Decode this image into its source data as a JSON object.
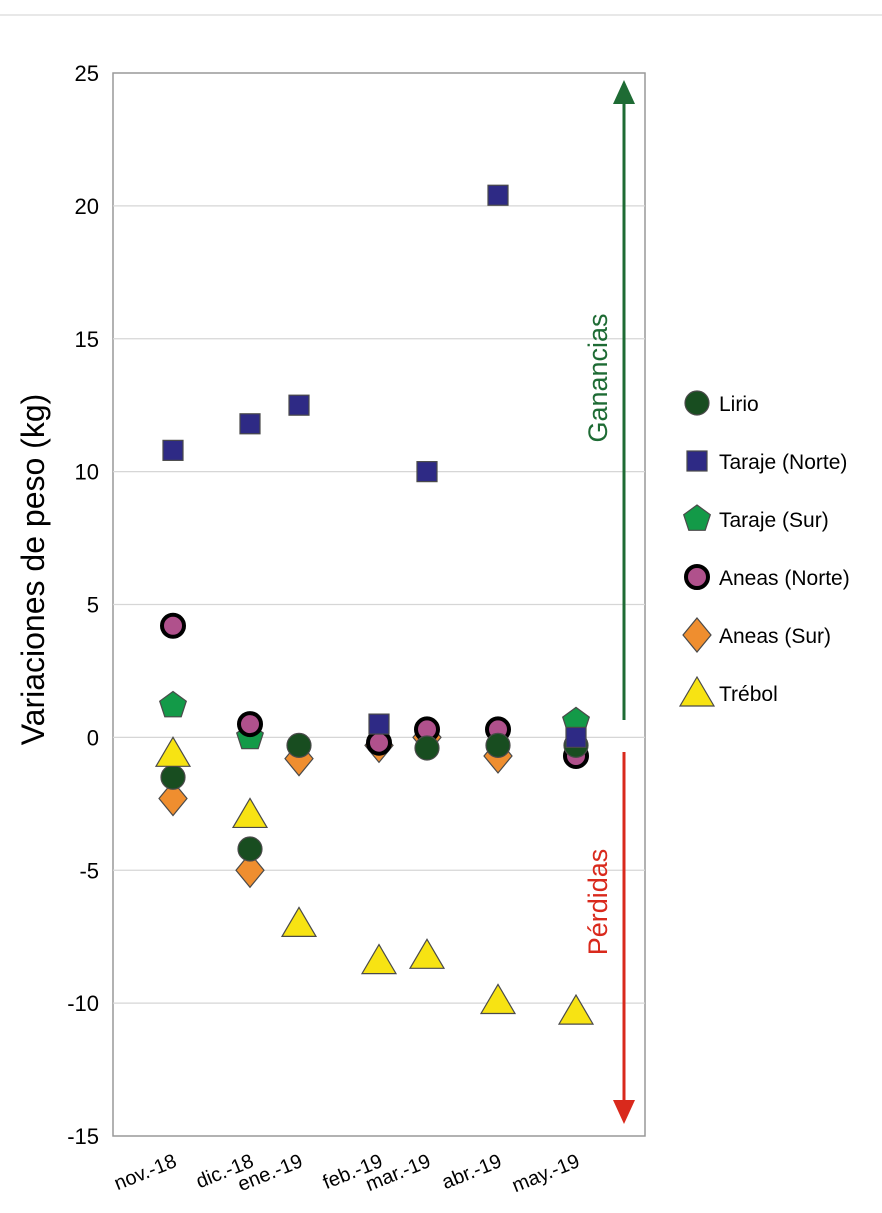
{
  "chart_data": {
    "type": "scatter",
    "categories": [
      "nov.-18",
      "dic.-18",
      "ene.-19",
      "feb.-19",
      "mar.-19",
      "abr.-19",
      "may.-19"
    ],
    "ylabel": "Variaciones de peso (kg)",
    "ylim": [
      -15,
      25
    ],
    "yticks": [
      25,
      20,
      15,
      10,
      5,
      0,
      -5,
      -10,
      -15
    ],
    "grid": "horizontal",
    "legend_position": "right",
    "annotations": {
      "gain": {
        "text": "Ganancias",
        "color": "#1e6b34"
      },
      "loss": {
        "text": "Pérdidas",
        "color": "#d9291c"
      }
    },
    "series": [
      {
        "name": "Aneas (Sur)",
        "marker": "diamond",
        "color": "#ef8e2f",
        "points": [
          {
            "x": "nov.-18",
            "y": -2.3
          },
          {
            "x": "dic.-18",
            "y": -5.0
          },
          {
            "x": "ene.-19",
            "y": -0.8
          },
          {
            "x": "feb.-19",
            "y": -0.3
          },
          {
            "x": "mar.-19",
            "y": 0.0
          },
          {
            "x": "abr.-19",
            "y": -0.7
          }
        ]
      },
      {
        "name": "Taraje (Sur)",
        "marker": "pentagon",
        "color": "#139a48",
        "points": [
          {
            "x": "nov.-18",
            "y": 1.2
          },
          {
            "x": "dic.-18",
            "y": 0.0
          },
          {
            "x": "may.-19",
            "y": 0.6
          }
        ]
      },
      {
        "name": "Aneas (Norte)",
        "marker": "ring",
        "color": "#b0518c",
        "points": [
          {
            "x": "nov.-18",
            "y": 4.2
          },
          {
            "x": "dic.-18",
            "y": 0.5
          },
          {
            "x": "feb.-19",
            "y": -0.2
          },
          {
            "x": "mar.-19",
            "y": 0.3
          },
          {
            "x": "abr.-19",
            "y": 0.3
          },
          {
            "x": "may.-19",
            "y": -0.7
          }
        ]
      },
      {
        "name": "Lirio",
        "marker": "circle",
        "color": "#184d20",
        "points": [
          {
            "x": "nov.-18",
            "y": -1.5
          },
          {
            "x": "dic.-18",
            "y": -4.2
          },
          {
            "x": "ene.-19",
            "y": -0.3
          },
          {
            "x": "mar.-19",
            "y": -0.4
          },
          {
            "x": "abr.-19",
            "y": -0.3
          },
          {
            "x": "may.-19",
            "y": -0.3
          }
        ]
      },
      {
        "name": "Taraje (Norte)",
        "marker": "square",
        "color": "#2e2a85",
        "points": [
          {
            "x": "nov.-18",
            "y": 10.8
          },
          {
            "x": "dic.-18",
            "y": 11.8
          },
          {
            "x": "ene.-19",
            "y": 12.5
          },
          {
            "x": "feb.-19",
            "y": 0.5
          },
          {
            "x": "mar.-19",
            "y": 10.0
          },
          {
            "x": "abr.-19",
            "y": 20.4
          },
          {
            "x": "may.-19",
            "y": 0.0
          }
        ]
      },
      {
        "name": "Trébol",
        "marker": "triangle",
        "color": "#f7e313",
        "points": [
          {
            "x": "nov.-18",
            "y": -0.6
          },
          {
            "x": "dic.-18",
            "y": -2.9
          },
          {
            "x": "ene.-19",
            "y": -7.0
          },
          {
            "x": "feb.-19",
            "y": -8.4
          },
          {
            "x": "mar.-19",
            "y": -8.2
          },
          {
            "x": "abr.-19",
            "y": -9.9
          },
          {
            "x": "may.-19",
            "y": -10.3
          }
        ]
      }
    ],
    "legend_order": [
      "Lirio",
      "Taraje (Norte)",
      "Taraje (Sur)",
      "Aneas (Norte)",
      "Aneas (Sur)",
      "Trébol"
    ]
  }
}
